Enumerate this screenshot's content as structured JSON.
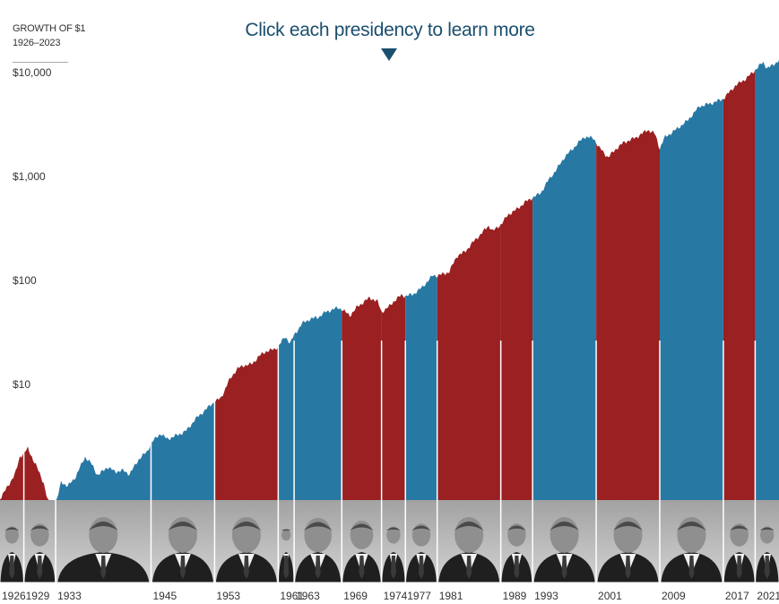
{
  "header": {
    "line1": "GROWTH OF $1",
    "line2": "1926–2023",
    "cta": "Click each presidency to learn more"
  },
  "colors": {
    "republican": "#9a2021",
    "democrat": "#2878a4",
    "photo_band": "#b4b4b4",
    "divider": "#ffffff",
    "axis_text": "#333333"
  },
  "chart_data": {
    "type": "area",
    "title": "GROWTH OF $1",
    "subtitle": "1926–2023",
    "xlabel": "",
    "ylabel": "",
    "yscale": "log",
    "xlim": [
      1926,
      2024
    ],
    "ylim": [
      1,
      20000
    ],
    "y_ticks": [
      {
        "value": 10,
        "label": "$10"
      },
      {
        "value": 100,
        "label": "$100"
      },
      {
        "value": 1000,
        "label": "$1,000"
      },
      {
        "value": 10000,
        "label": "$10,000"
      }
    ],
    "grid": false,
    "legend": "none",
    "series_points": [
      [
        1926.0,
        1.0
      ],
      [
        1927.0,
        1.3
      ],
      [
        1928.0,
        1.8
      ],
      [
        1928.5,
        2.5
      ],
      [
        1929.5,
        3.0
      ],
      [
        1930.5,
        2.1
      ],
      [
        1931.5,
        1.4
      ],
      [
        1932.4,
        0.7
      ],
      [
        1933.0,
        0.85
      ],
      [
        1933.7,
        1.45
      ],
      [
        1934.5,
        1.3
      ],
      [
        1935.5,
        1.6
      ],
      [
        1936.7,
        2.5
      ],
      [
        1937.6,
        2.1
      ],
      [
        1938.3,
        1.65
      ],
      [
        1939.5,
        2.0
      ],
      [
        1940.5,
        1.8
      ],
      [
        1941.5,
        1.85
      ],
      [
        1942.3,
        1.7
      ],
      [
        1943.5,
        2.4
      ],
      [
        1944.5,
        2.8
      ],
      [
        1945.0,
        3.4
      ],
      [
        1946.2,
        4.2
      ],
      [
        1947.0,
        3.7
      ],
      [
        1948.5,
        4.1
      ],
      [
        1949.5,
        4.5
      ],
      [
        1950.5,
        5.7
      ],
      [
        1951.5,
        6.7
      ],
      [
        1952.5,
        7.9
      ],
      [
        1953.0,
        8.5
      ],
      [
        1953.8,
        9.2
      ],
      [
        1954.8,
        13.5
      ],
      [
        1955.8,
        17.5
      ],
      [
        1956.7,
        19.0
      ],
      [
        1957.7,
        19.5
      ],
      [
        1958.5,
        23.0
      ],
      [
        1959.5,
        26.0
      ],
      [
        1960.5,
        27.0
      ],
      [
        1961.0,
        29.0
      ],
      [
        1961.9,
        36.0
      ],
      [
        1962.5,
        31.0
      ],
      [
        1963.0,
        37.0
      ],
      [
        1964.0,
        48.0
      ],
      [
        1965.0,
        53.0
      ],
      [
        1966.0,
        55.0
      ],
      [
        1967.0,
        62.0
      ],
      [
        1968.5,
        68.0
      ],
      [
        1969.0,
        66.0
      ],
      [
        1970.0,
        57.0
      ],
      [
        1971.0,
        70.0
      ],
      [
        1972.5,
        85.0
      ],
      [
        1973.5,
        78.0
      ],
      [
        1974.0,
        62.0
      ],
      [
        1974.8,
        68.0
      ],
      [
        1975.5,
        78.0
      ],
      [
        1976.5,
        90.0
      ],
      [
        1977.0,
        88.0
      ],
      [
        1978.0,
        92.0
      ],
      [
        1979.0,
        105.0
      ],
      [
        1980.5,
        140.0
      ],
      [
        1981.0,
        138.0
      ],
      [
        1982.5,
        150.0
      ],
      [
        1983.5,
        215.0
      ],
      [
        1984.5,
        235.0
      ],
      [
        1985.5,
        290.0
      ],
      [
        1987.5,
        420.0
      ],
      [
        1988.0,
        370.0
      ],
      [
        1989.0,
        430.0
      ],
      [
        1990.0,
        540.0
      ],
      [
        1991.0,
        600.0
      ],
      [
        1992.0,
        700.0
      ],
      [
        1993.0,
        780.0
      ],
      [
        1994.0,
        860.0
      ],
      [
        1995.0,
        1150.0
      ],
      [
        1996.0,
        1450.0
      ],
      [
        1997.0,
        1900.0
      ],
      [
        1998.5,
        2500.0
      ],
      [
        1999.5,
        3000.0
      ],
      [
        2000.7,
        2900.0
      ],
      [
        2001.3,
        2400.0
      ],
      [
        2002.5,
        1900.0
      ],
      [
        2003.5,
        2300.0
      ],
      [
        2004.5,
        2650.0
      ],
      [
        2006.0,
        2950.0
      ],
      [
        2007.5,
        3500.0
      ],
      [
        2008.4,
        3200.0
      ],
      [
        2009.0,
        2300.0
      ],
      [
        2009.6,
        2950.0
      ],
      [
        2011.0,
        3500.0
      ],
      [
        2012.5,
        4300.0
      ],
      [
        2014.0,
        5900.0
      ],
      [
        2015.5,
        6300.0
      ],
      [
        2016.9,
        6900.0
      ],
      [
        2017.1,
        7100.0
      ],
      [
        2018.5,
        9300.0
      ],
      [
        2019.8,
        10800.0
      ],
      [
        2020.9,
        12900.0
      ],
      [
        2021.1,
        13500.0
      ],
      [
        2022.0,
        15600.0
      ],
      [
        2022.5,
        13800.0
      ],
      [
        2023.2,
        14500.0
      ],
      [
        2023.99,
        16500.0
      ]
    ],
    "presidencies": [
      {
        "start": 1926,
        "end": 1929,
        "party": "R",
        "label": "1926"
      },
      {
        "start": 1929,
        "end": 1933,
        "party": "R",
        "label": "1929"
      },
      {
        "start": 1933,
        "end": 1945,
        "party": "D",
        "label": "1933"
      },
      {
        "start": 1945,
        "end": 1953,
        "party": "D",
        "label": "1945"
      },
      {
        "start": 1953,
        "end": 1961,
        "party": "R",
        "label": "1953"
      },
      {
        "start": 1961,
        "end": 1963,
        "party": "D",
        "label": "1961"
      },
      {
        "start": 1963,
        "end": 1969,
        "party": "D",
        "label": "1963"
      },
      {
        "start": 1969,
        "end": 1974,
        "party": "R",
        "label": "1969"
      },
      {
        "start": 1974,
        "end": 1977,
        "party": "R",
        "label": "1974"
      },
      {
        "start": 1977,
        "end": 1981,
        "party": "D",
        "label": "1977"
      },
      {
        "start": 1981,
        "end": 1989,
        "party": "R",
        "label": "1981"
      },
      {
        "start": 1989,
        "end": 1993,
        "party": "R",
        "label": "1989"
      },
      {
        "start": 1993,
        "end": 2001,
        "party": "D",
        "label": "1993"
      },
      {
        "start": 2001,
        "end": 2009,
        "party": "R",
        "label": "2001"
      },
      {
        "start": 2009,
        "end": 2017,
        "party": "D",
        "label": "2009"
      },
      {
        "start": 2017,
        "end": 2021,
        "party": "R",
        "label": "2017"
      },
      {
        "start": 2021,
        "end": 2024,
        "party": "D",
        "label": "2021"
      }
    ]
  }
}
